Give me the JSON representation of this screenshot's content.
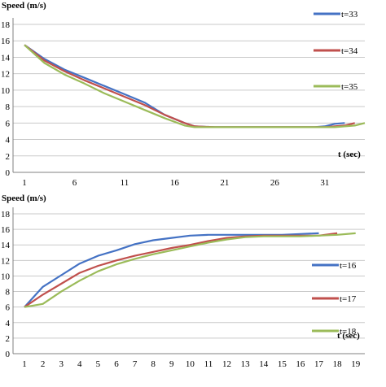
{
  "chart_data": [
    {
      "type": "line",
      "ylabel": "Speed (m/s)",
      "xlabel": "t (sec)",
      "ylim": [
        0,
        18
      ],
      "yticks": [
        0,
        2,
        4,
        6,
        8,
        10,
        12,
        14,
        16,
        18
      ],
      "xlim": [
        1,
        35
      ],
      "xticks": [
        1,
        6,
        11,
        16,
        21,
        26,
        31
      ],
      "grid": "horizontal",
      "legend": "right",
      "series": [
        {
          "name": "t=33",
          "color": "#4472C4",
          "x": [
            1,
            3,
            5,
            7,
            9,
            11,
            13,
            15,
            17,
            18,
            20,
            22,
            24,
            26,
            28,
            30,
            31,
            32,
            33
          ],
          "y": [
            15.5,
            13.8,
            12.5,
            11.5,
            10.5,
            9.5,
            8.5,
            7.0,
            6.0,
            5.6,
            5.5,
            5.5,
            5.5,
            5.5,
            5.5,
            5.5,
            5.6,
            5.9,
            6.0
          ]
        },
        {
          "name": "t=34",
          "color": "#C0504D",
          "x": [
            1,
            3,
            5,
            7,
            9,
            11,
            13,
            15,
            17,
            18,
            20,
            22,
            24,
            26,
            28,
            30,
            31,
            32,
            33,
            34
          ],
          "y": [
            15.5,
            13.6,
            12.3,
            11.2,
            10.2,
            9.2,
            8.2,
            7.0,
            6.0,
            5.6,
            5.5,
            5.5,
            5.5,
            5.5,
            5.5,
            5.5,
            5.5,
            5.6,
            5.7,
            6.0
          ]
        },
        {
          "name": "t=35",
          "color": "#9BBB59",
          "x": [
            1,
            3,
            5,
            7,
            9,
            11,
            13,
            15,
            17,
            18,
            20,
            22,
            24,
            26,
            28,
            30,
            32,
            33,
            34,
            35
          ],
          "y": [
            15.5,
            13.3,
            11.9,
            10.8,
            9.6,
            8.6,
            7.6,
            6.6,
            5.7,
            5.5,
            5.5,
            5.5,
            5.5,
            5.5,
            5.5,
            5.5,
            5.5,
            5.6,
            5.7,
            6.0
          ]
        }
      ]
    },
    {
      "type": "line",
      "ylabel": "Speed (m/s)",
      "xlabel": "t (sec)",
      "ylim": [
        0,
        18
      ],
      "yticks": [
        0,
        2,
        4,
        6,
        8,
        10,
        12,
        14,
        16,
        18
      ],
      "xlim": [
        1,
        19
      ],
      "xticks": [
        1,
        2,
        3,
        4,
        5,
        6,
        7,
        8,
        9,
        10,
        11,
        12,
        13,
        14,
        15,
        16,
        17,
        18,
        19
      ],
      "grid": "horizontal",
      "legend": "right",
      "series": [
        {
          "name": "t=16",
          "color": "#4472C4",
          "x": [
            1,
            2,
            3,
            4,
            5,
            6,
            7,
            8,
            9,
            10,
            11,
            12,
            13,
            14,
            15,
            16,
            17
          ],
          "y": [
            6.0,
            8.6,
            10.1,
            11.6,
            12.6,
            13.3,
            14.1,
            14.6,
            14.9,
            15.2,
            15.3,
            15.3,
            15.3,
            15.3,
            15.3,
            15.4,
            15.5
          ]
        },
        {
          "name": "t=17",
          "color": "#C0504D",
          "x": [
            1,
            2,
            3,
            4,
            5,
            6,
            7,
            8,
            9,
            10,
            11,
            12,
            13,
            14,
            15,
            16,
            17,
            18
          ],
          "y": [
            6.0,
            7.6,
            9.0,
            10.4,
            11.3,
            12.0,
            12.6,
            13.1,
            13.6,
            14.0,
            14.5,
            14.9,
            15.1,
            15.2,
            15.2,
            15.2,
            15.2,
            15.5
          ]
        },
        {
          "name": "t=18",
          "color": "#9BBB59",
          "x": [
            1,
            2,
            3,
            4,
            5,
            6,
            7,
            8,
            9,
            10,
            11,
            12,
            13,
            14,
            15,
            16,
            17,
            18,
            19
          ],
          "y": [
            6.0,
            6.4,
            8.0,
            9.4,
            10.6,
            11.5,
            12.2,
            12.8,
            13.3,
            13.8,
            14.3,
            14.7,
            15.0,
            15.1,
            15.1,
            15.1,
            15.2,
            15.3,
            15.5
          ]
        }
      ]
    }
  ]
}
